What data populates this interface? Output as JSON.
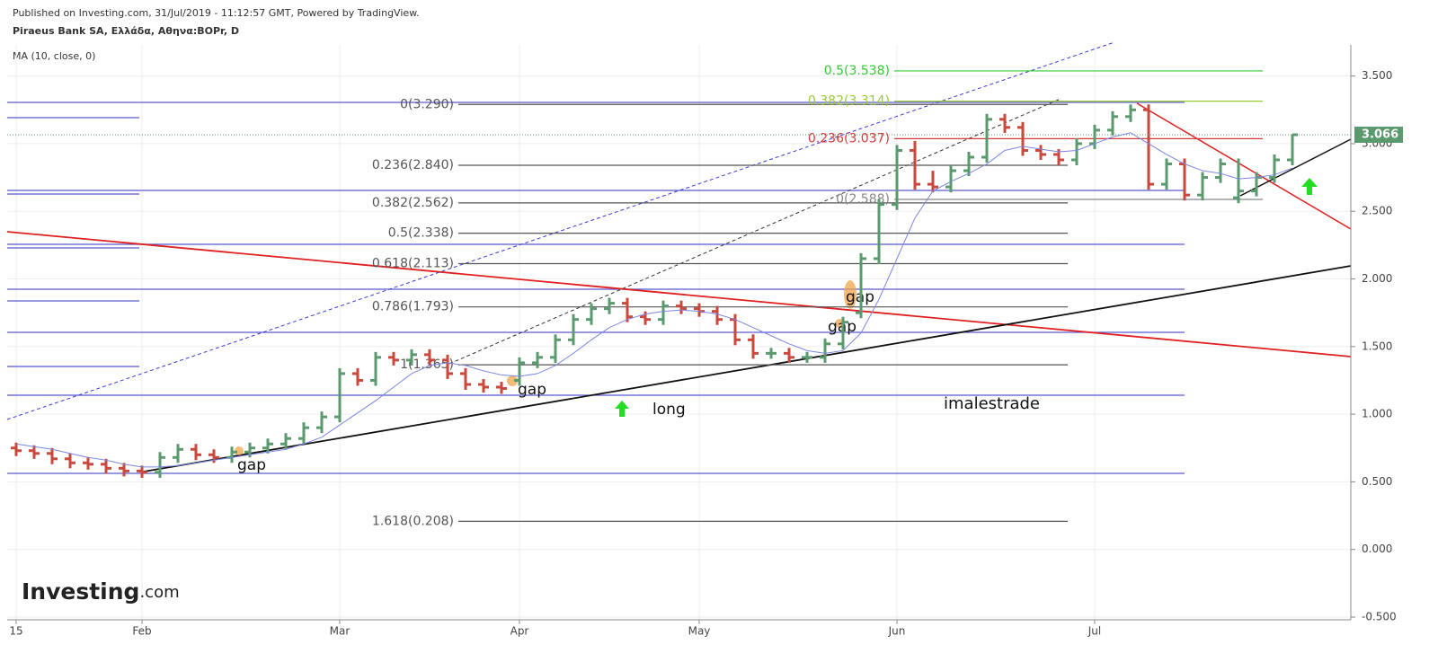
{
  "header": {
    "published": "Published on Investing.com, 31/Jul/2019 - 11:12:57 GMT, Powered by TradingView.",
    "symbol": "Piraeus Bank SA, Ελλάδα, Αθηνα:BOPr, D",
    "indicator": "MA (10, close, 0)"
  },
  "logo": {
    "brand": "Investing",
    "suffix": ".com"
  },
  "chart_data": {
    "type": "ohlc",
    "categories": [
      "15",
      null,
      null,
      null,
      null,
      null,
      null,
      "Feb",
      null,
      null,
      null,
      null,
      null,
      null,
      null,
      null,
      null,
      null,
      "Mar",
      null,
      null,
      null,
      null,
      null,
      null,
      null,
      null,
      null,
      "Apr",
      null,
      null,
      null,
      null,
      null,
      null,
      null,
      null,
      null,
      "May",
      null,
      null,
      null,
      null,
      null,
      null,
      null,
      null,
      null,
      null,
      "Jun",
      null,
      null,
      null,
      null,
      null,
      null,
      null,
      null,
      null,
      null,
      "Jul",
      null,
      null,
      null,
      null,
      null,
      null,
      null,
      null,
      null,
      null,
      null
    ],
    "open": [
      0.75,
      0.73,
      0.71,
      0.67,
      0.64,
      0.63,
      0.6,
      0.58,
      0.57,
      0.68,
      0.74,
      0.7,
      0.68,
      0.72,
      0.75,
      0.78,
      0.82,
      0.9,
      0.98,
      1.3,
      1.25,
      1.42,
      1.4,
      1.44,
      1.4,
      1.3,
      1.22,
      1.2,
      1.25,
      1.38,
      1.42,
      1.55,
      1.7,
      1.78,
      1.82,
      1.72,
      1.7,
      1.8,
      1.78,
      1.76,
      1.7,
      1.55,
      1.45,
      1.45,
      1.42,
      1.42,
      1.52,
      1.75,
      2.15,
      2.55,
      2.95,
      2.7,
      2.68,
      2.8,
      2.9,
      3.18,
      3.12,
      2.95,
      2.92,
      2.88,
      3.0,
      3.1,
      3.2,
      3.25,
      2.7,
      2.85,
      2.62,
      2.75,
      2.6,
      2.65,
      2.75,
      2.88
    ],
    "high": [
      0.79,
      0.77,
      0.75,
      0.71,
      0.68,
      0.67,
      0.64,
      0.62,
      0.72,
      0.78,
      0.78,
      0.74,
      0.76,
      0.79,
      0.82,
      0.86,
      0.94,
      1.02,
      1.34,
      1.34,
      1.46,
      1.46,
      1.48,
      1.48,
      1.44,
      1.34,
      1.26,
      1.24,
      1.42,
      1.46,
      1.59,
      1.74,
      1.82,
      1.86,
      1.86,
      1.76,
      1.84,
      1.84,
      1.82,
      1.8,
      1.74,
      1.59,
      1.49,
      1.49,
      1.46,
      1.56,
      1.72,
      2.19,
      2.59,
      2.99,
      3.02,
      2.8,
      2.84,
      2.94,
      3.22,
      3.22,
      3.16,
      2.99,
      2.96,
      3.04,
      3.14,
      3.24,
      3.29,
      3.29,
      2.89,
      2.89,
      2.79,
      2.89,
      2.89,
      2.79,
      2.92,
      3.07
    ],
    "low": [
      0.69,
      0.67,
      0.63,
      0.6,
      0.59,
      0.56,
      0.54,
      0.53,
      0.53,
      0.64,
      0.66,
      0.64,
      0.64,
      0.68,
      0.71,
      0.74,
      0.78,
      0.86,
      0.94,
      1.21,
      1.21,
      1.36,
      1.36,
      1.36,
      1.26,
      1.18,
      1.16,
      1.15,
      1.21,
      1.34,
      1.38,
      1.51,
      1.66,
      1.74,
      1.68,
      1.66,
      1.66,
      1.74,
      1.72,
      1.66,
      1.51,
      1.41,
      1.41,
      1.38,
      1.38,
      1.38,
      1.48,
      1.71,
      2.11,
      2.51,
      2.66,
      2.64,
      2.64,
      2.76,
      2.86,
      3.08,
      2.91,
      2.88,
      2.84,
      2.84,
      2.96,
      3.06,
      3.16,
      2.66,
      2.66,
      2.58,
      2.58,
      2.71,
      2.56,
      2.61,
      2.71,
      2.84
    ],
    "close": [
      0.73,
      0.71,
      0.67,
      0.64,
      0.63,
      0.6,
      0.58,
      0.57,
      0.68,
      0.74,
      0.7,
      0.68,
      0.72,
      0.75,
      0.78,
      0.82,
      0.9,
      0.98,
      1.3,
      1.25,
      1.42,
      1.4,
      1.44,
      1.4,
      1.3,
      1.22,
      1.2,
      1.19,
      1.38,
      1.42,
      1.55,
      1.7,
      1.78,
      1.82,
      1.72,
      1.7,
      1.8,
      1.78,
      1.76,
      1.7,
      1.55,
      1.45,
      1.45,
      1.42,
      1.42,
      1.52,
      1.68,
      2.15,
      2.55,
      2.95,
      2.7,
      2.68,
      2.8,
      2.9,
      3.18,
      3.12,
      2.95,
      2.92,
      2.88,
      3.0,
      3.1,
      3.2,
      3.25,
      2.7,
      2.85,
      2.62,
      2.75,
      2.85,
      2.65,
      2.75,
      2.88,
      3.066
    ],
    "up_color": "#5b9a6f",
    "down_color": "#c94a3d",
    "ma": {
      "color": "#7a86e0",
      "values": [
        0.78,
        0.76,
        0.74,
        0.71,
        0.68,
        0.66,
        0.63,
        0.61,
        0.61,
        0.62,
        0.64,
        0.66,
        0.68,
        0.7,
        0.72,
        0.74,
        0.78,
        0.83,
        0.92,
        1.01,
        1.1,
        1.2,
        1.3,
        1.36,
        1.38,
        1.36,
        1.32,
        1.29,
        1.28,
        1.3,
        1.36,
        1.45,
        1.55,
        1.64,
        1.7,
        1.74,
        1.76,
        1.77,
        1.76,
        1.74,
        1.7,
        1.64,
        1.58,
        1.52,
        1.47,
        1.45,
        1.47,
        1.6,
        1.85,
        2.15,
        2.45,
        2.65,
        2.72,
        2.78,
        2.85,
        2.95,
        2.98,
        2.96,
        2.94,
        2.95,
        3.0,
        3.05,
        3.08,
        3.0,
        2.92,
        2.85,
        2.8,
        2.78,
        2.74,
        2.75,
        2.77,
        2.82
      ]
    },
    "last_price": 3.066,
    "last_price_color": "#5b9a6f",
    "ylim": [
      -0.52,
      3.73
    ],
    "yticks": [
      {
        "value": -0.5,
        "label": "-0.500"
      },
      {
        "value": 0,
        "label": "0.000"
      },
      {
        "value": 0.5,
        "label": "0.500"
      },
      {
        "value": 1,
        "label": "1.000"
      },
      {
        "value": 1.5,
        "label": "1.500"
      },
      {
        "value": 2,
        "label": "2.000"
      },
      {
        "value": 2.5,
        "label": "2.500"
      },
      {
        "value": 3,
        "label": "3.000"
      },
      {
        "value": 3.5,
        "label": "3.500"
      }
    ],
    "grid": true,
    "fib_left": {
      "color": "#555555",
      "levels": [
        {
          "label": "0(3.290)",
          "price": 3.29
        },
        {
          "label": "0.236(2.840)",
          "price": 2.84
        },
        {
          "label": "0.382(2.562)",
          "price": 2.562
        },
        {
          "label": "0.5(2.338)",
          "price": 2.338
        },
        {
          "label": "0.618(2.113)",
          "price": 2.113
        },
        {
          "label": "0.786(1.793)",
          "price": 1.793
        },
        {
          "label": "1(1.365)",
          "price": 1.365
        },
        {
          "label": "1.618(0.208)",
          "price": 0.208
        }
      ]
    },
    "fib_right": {
      "levels": [
        {
          "label": "0.5(3.538)",
          "price": 3.538,
          "color": "#33cc33"
        },
        {
          "label": "0.382(3.314)",
          "price": 3.314,
          "color": "#99cc33"
        },
        {
          "label": "0.236(3.037)",
          "price": 3.037,
          "color": "#d63a3a"
        },
        {
          "label": "0(2.588)",
          "price": 2.588,
          "color": "#888888"
        }
      ]
    },
    "annotations": [
      "gap",
      "gap",
      "gap",
      "gap",
      "long",
      "imalestrade"
    ]
  }
}
